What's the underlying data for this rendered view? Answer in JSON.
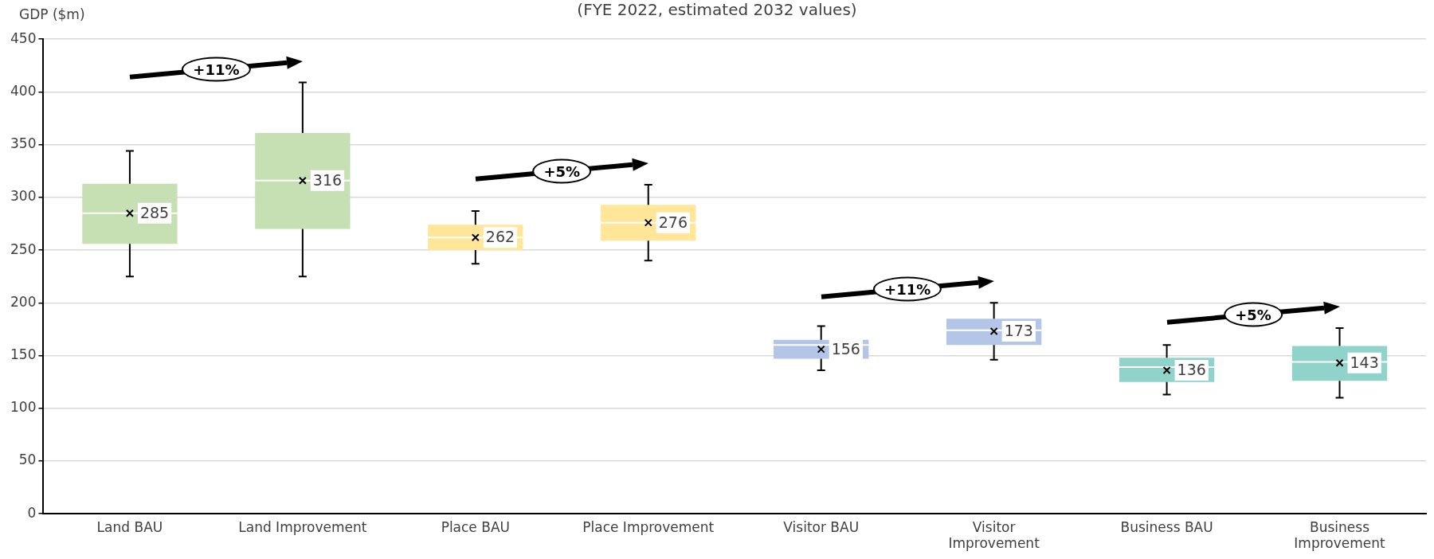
{
  "chart_data": {
    "type": "box",
    "subtitle": "(FYE 2022, estimated 2032 values)",
    "ylabel": "GDP ($m)",
    "categories": [
      "Land BAU",
      "Land Improvement",
      "Place BAU",
      "Place Improvement",
      "Visitor BAU",
      "Visitor Improvement",
      "Business BAU",
      "Business Improvement"
    ],
    "colors": [
      "#c6e0b4",
      "#c6e0b4",
      "#ffe699",
      "#ffe699",
      "#b4c6e7",
      "#b4c6e7",
      "#8fd3cb",
      "#8fd3cb"
    ],
    "boxes": [
      {
        "low": 225,
        "q1": 256,
        "median": 285,
        "q3": 313,
        "high": 344,
        "mean": 285
      },
      {
        "low": 225,
        "q1": 270,
        "median": 316,
        "q3": 361,
        "high": 409,
        "mean": 316
      },
      {
        "low": 237,
        "q1": 250,
        "median": 262,
        "q3": 274,
        "high": 287,
        "mean": 262
      },
      {
        "low": 240,
        "q1": 259,
        "median": 276,
        "q3": 293,
        "high": 312,
        "mean": 276
      },
      {
        "low": 136,
        "q1": 147,
        "median": 160,
        "q3": 165,
        "high": 178,
        "mean": 156
      },
      {
        "low": 146,
        "q1": 160,
        "median": 174,
        "q3": 185,
        "high": 200,
        "mean": 173
      },
      {
        "low": 113,
        "q1": 125,
        "median": 139,
        "q3": 148,
        "high": 160,
        "mean": 136
      },
      {
        "low": 110,
        "q1": 126,
        "median": 144,
        "q3": 159,
        "high": 176,
        "mean": 143
      }
    ],
    "ylim": [
      0,
      450
    ],
    "yticks": [
      0,
      50,
      100,
      150,
      200,
      250,
      300,
      350,
      400,
      450
    ],
    "grid": "y",
    "legend": false,
    "value_labels": [
      "285",
      "316",
      "262",
      "276",
      "156",
      "173",
      "136",
      "143"
    ],
    "annotations": [
      "+11%",
      "+5%",
      "+11%",
      "+5%"
    ]
  }
}
